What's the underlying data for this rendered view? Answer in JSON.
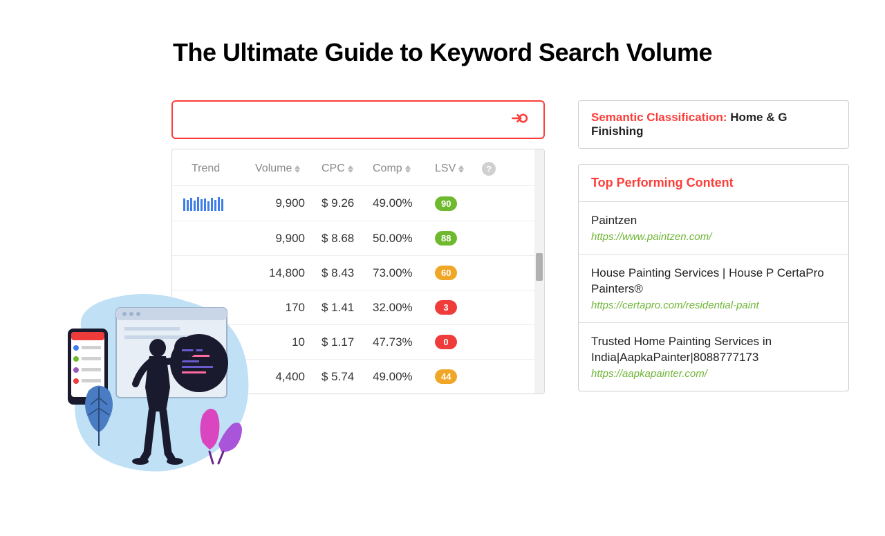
{
  "title": "The Ultimate Guide to Keyword Search Volume",
  "table": {
    "headers": {
      "trend": "Trend",
      "volume": "Volume",
      "cpc": "CPC",
      "comp": "Comp",
      "lsv": "LSV"
    },
    "rows": [
      {
        "volume": "9,900",
        "cpc": "$ 9.26",
        "comp": "49.00%",
        "lsv": "90",
        "lsv_color": "#6fb92e",
        "has_trend": true
      },
      {
        "volume": "9,900",
        "cpc": "$ 8.68",
        "comp": "50.00%",
        "lsv": "88",
        "lsv_color": "#6fb92e",
        "has_trend": false
      },
      {
        "volume": "14,800",
        "cpc": "$ 8.43",
        "comp": "73.00%",
        "lsv": "60",
        "lsv_color": "#f0a626",
        "has_trend": false
      },
      {
        "volume": "170",
        "cpc": "$ 1.41",
        "comp": "32.00%",
        "lsv": "3",
        "lsv_color": "#f03b3b",
        "has_trend": false
      },
      {
        "volume": "10",
        "cpc": "$ 1.17",
        "comp": "47.73%",
        "lsv": "0",
        "lsv_color": "#f03b3b",
        "has_trend": false
      },
      {
        "volume": "4,400",
        "cpc": "$ 5.74",
        "comp": "49.00%",
        "lsv": "44",
        "lsv_color": "#f0a626",
        "has_trend": false
      }
    ],
    "trend_bar_heights": [
      18,
      16,
      19,
      15,
      20,
      17,
      18,
      14,
      19,
      16,
      20,
      17
    ],
    "trend_bar_color": "#3d7ee8"
  },
  "semantic": {
    "label": "Semantic Classification: ",
    "value": "Home & G Finishing"
  },
  "top_content": {
    "header": "Top Performing Content",
    "items": [
      {
        "title": "Paintzen",
        "url": "https://www.paintzen.com/"
      },
      {
        "title": "House Painting Services | House P CertaPro Painters®",
        "url": "https://certapro.com/residential-paint"
      },
      {
        "title": "Trusted Home Painting Services in India|AapkaPainter|8088777173",
        "url": "https://aapkapainter.com/"
      }
    ]
  },
  "colors": {
    "accent": "#fc3d39",
    "link_green": "#6fb536"
  }
}
